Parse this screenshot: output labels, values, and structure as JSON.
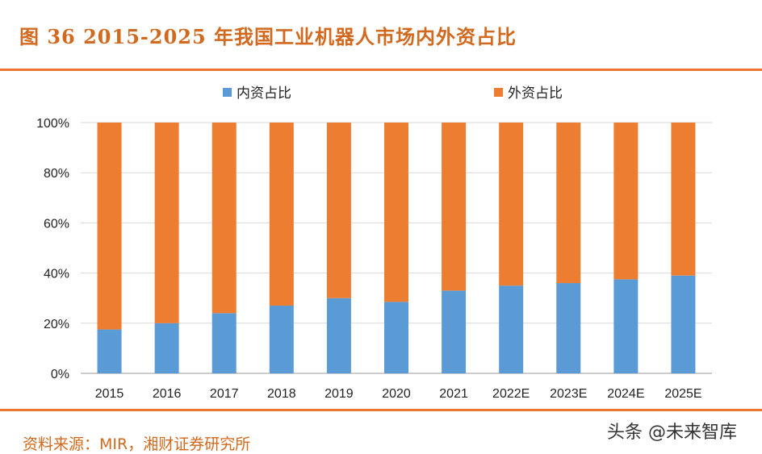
{
  "header": {
    "title": "图 36 2015-2025 年我国工业机器人市场内外资占比"
  },
  "footer": {
    "source": "资料来源：MIR，湘财证券研究所",
    "watermark": "头条 @未来智库"
  },
  "chart_data": {
    "type": "bar",
    "stacked": true,
    "title": "图 36 2015-2025 年我国工业机器人市场内外资占比",
    "categories": [
      "2015",
      "2016",
      "2017",
      "2018",
      "2019",
      "2020",
      "2021",
      "2022E",
      "2023E",
      "2024E",
      "2025E"
    ],
    "series": [
      {
        "name": "内资占比",
        "values": [
          17.5,
          20,
          24,
          27,
          30,
          28.5,
          33,
          35,
          36,
          37.5,
          39
        ],
        "color": "#5b9bd5"
      },
      {
        "name": "外资占比",
        "values": [
          82.5,
          80,
          76,
          73,
          70,
          71.5,
          67,
          65,
          64,
          62.5,
          61
        ],
        "color": "#ed7d31"
      }
    ],
    "yticks": [
      "0%",
      "20%",
      "40%",
      "60%",
      "80%",
      "100%"
    ],
    "ylim": [
      0,
      100
    ],
    "xlabel": "",
    "ylabel": "",
    "grid": true,
    "legend_position": "top"
  }
}
